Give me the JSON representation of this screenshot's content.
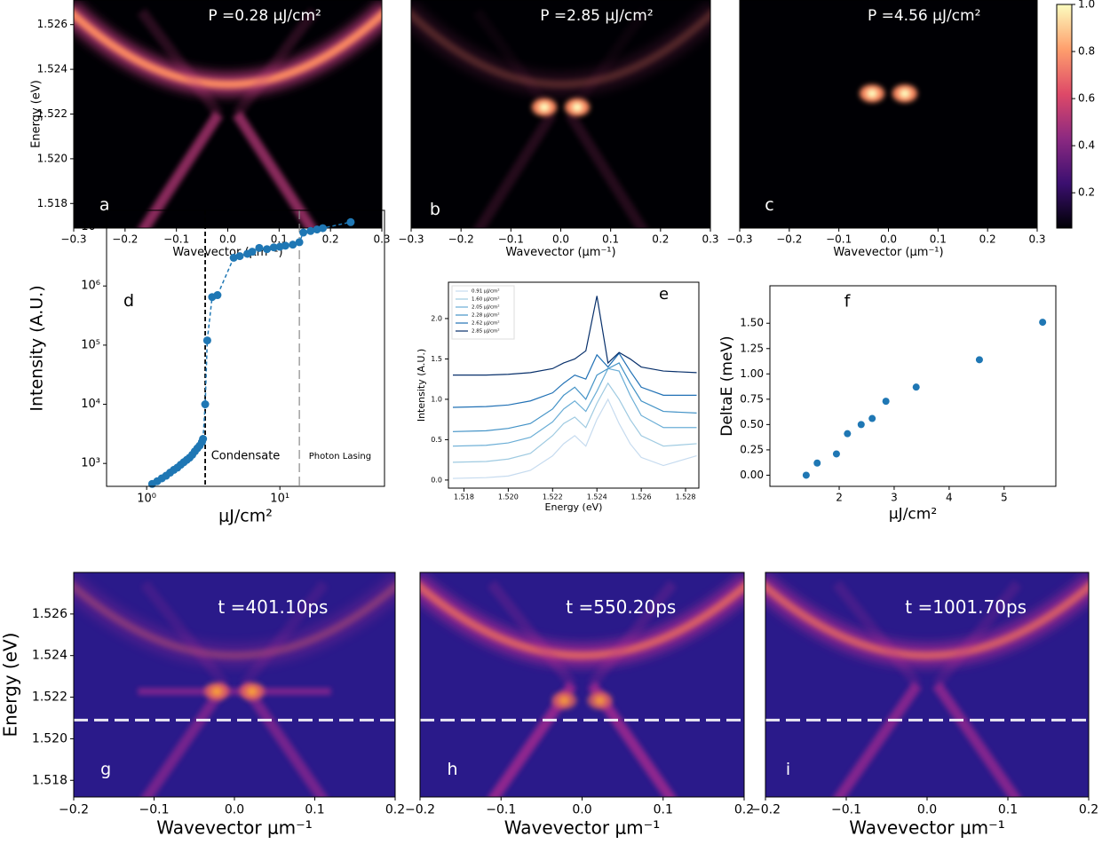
{
  "chart_data": [
    {
      "type": "heatmap",
      "colormap": "magma",
      "label": "P =0.28 μJ/cm²",
      "panel_label": "a",
      "xlabel": "Wavevector (μm⁻¹)",
      "ylabel": "Energy (eV)",
      "xlim": [
        -0.3,
        0.3
      ],
      "xticks": [
        {
          "value": -0.3,
          "label": "−0.3"
        },
        {
          "value": -0.2,
          "label": "−0.2"
        },
        {
          "value": -0.1,
          "label": "−0.1"
        },
        {
          "value": 0.0,
          "label": "0.0"
        },
        0.1,
        0.2,
        0.3
      ],
      "ylim": [
        1.5169,
        1.5271
      ],
      "yticks": [
        1.518,
        {
          "value": 1.52,
          "label": "1.520"
        },
        1.522,
        1.524,
        1.526
      ]
    },
    {
      "type": "heatmap",
      "colormap": "magma",
      "label": "P =2.85 μJ/cm²",
      "panel_label": "b",
      "xlabel": "Wavevector (μm⁻¹)",
      "xlim": [
        -0.3,
        0.3
      ],
      "xticks": [
        {
          "value": -0.3,
          "label": "−0.3"
        },
        {
          "value": -0.2,
          "label": "−0.2"
        },
        {
          "value": -0.1,
          "label": "−0.1"
        },
        {
          "value": 0.0,
          "label": "0.0"
        },
        0.1,
        0.2,
        0.3
      ],
      "ylim": [
        1.5169,
        1.5271
      ]
    },
    {
      "type": "heatmap",
      "colormap": "magma",
      "label": "P =4.56 μJ/cm²",
      "panel_label": "c",
      "xlabel": "Wavevector (μm⁻¹)",
      "xlim": [
        -0.3,
        0.3
      ],
      "xticks": [
        {
          "value": -0.3,
          "label": "−0.3"
        },
        {
          "value": -0.2,
          "label": "−0.2"
        },
        {
          "value": -0.1,
          "label": "−0.1"
        },
        {
          "value": 0.0,
          "label": "0.0"
        },
        0.1,
        0.2,
        0.3
      ],
      "ylim": [
        1.5169,
        1.5271
      ]
    },
    {
      "type": "colorbar",
      "colormap": "magma",
      "ylim": [
        0.05,
        1.0
      ],
      "yticks": [
        0.2,
        0.4,
        0.6,
        0.8,
        {
          "value": 1.0,
          "label": "1.0"
        }
      ]
    },
    {
      "type": "logscatter",
      "panel_label": "d",
      "xlabel": "μJ/cm²",
      "ylabel": "Intensity (A.U.)",
      "xscale": "log",
      "yscale": "log",
      "color": "#1f77b4",
      "linestyle": "dashed",
      "annotations": [
        "Condensate",
        "Photon Lasing"
      ],
      "vlines": [
        {
          "x": 2.75,
          "color": "#000000"
        },
        {
          "x": 14,
          "color": "#888888"
        }
      ],
      "x": [
        1.1,
        1.2,
        1.3,
        1.4,
        1.5,
        1.6,
        1.7,
        1.8,
        1.9,
        2.0,
        2.1,
        2.2,
        2.3,
        2.4,
        2.5,
        2.6,
        2.65,
        2.75,
        2.85,
        3.1,
        3.4,
        4.5,
        5.0,
        5.7,
        6.2,
        7.0,
        8.0,
        9.0,
        10.0,
        11.0,
        12.5,
        14.0,
        15.0,
        17.0,
        19.0,
        21.0,
        34.0
      ],
      "values": [
        450,
        500,
        560,
        620,
        700,
        780,
        850,
        950,
        1050,
        1150,
        1250,
        1400,
        1600,
        1800,
        2000,
        2300,
        2600,
        10000,
        120000,
        650000,
        700000,
        3000000,
        3200000,
        3500000,
        3800000,
        4400000,
        4200000,
        4500000,
        4600000,
        4800000,
        5000000,
        5500000,
        8000000,
        8500000,
        9000000,
        9500000,
        12000000
      ],
      "xlim": [
        0.5,
        61
      ],
      "xticks": [
        {
          "value": 1,
          "label": "10⁰"
        },
        {
          "value": 10,
          "label": "10¹"
        }
      ],
      "ylim": [
        410,
        19000000
      ],
      "yticks": [
        {
          "value": 1000,
          "label": "10³"
        },
        {
          "value": 10000,
          "label": "10⁴"
        },
        {
          "value": 100000,
          "label": "10⁵"
        },
        {
          "value": 1000000,
          "label": "10⁶"
        },
        {
          "value": 10000000,
          "label": "10⁷"
        }
      ]
    },
    {
      "type": "line",
      "panel_label": "e",
      "xlabel": "Energy (eV)",
      "ylabel": "Intensity (A.U.)",
      "legend": "upper left",
      "x": [
        1.5175,
        1.519,
        1.52,
        1.521,
        1.522,
        1.5225,
        1.523,
        1.5235,
        1.524,
        1.5245,
        1.525,
        1.5255,
        1.526,
        1.527,
        1.5285
      ],
      "series": [
        {
          "name": "0.91 μJ/cm²",
          "color": "#c6dbef",
          "values": [
            0.02,
            0.03,
            0.05,
            0.12,
            0.3,
            0.45,
            0.55,
            0.42,
            0.75,
            1.0,
            0.7,
            0.45,
            0.28,
            0.18,
            0.3
          ]
        },
        {
          "name": "1.60 μJ/cm²",
          "color": "#9ecae1",
          "values": [
            0.22,
            0.23,
            0.26,
            0.33,
            0.55,
            0.7,
            0.78,
            0.65,
            0.95,
            1.2,
            1.0,
            0.75,
            0.55,
            0.42,
            0.45
          ]
        },
        {
          "name": "2.05 μJ/cm²",
          "color": "#6baed6",
          "values": [
            0.42,
            0.43,
            0.46,
            0.53,
            0.72,
            0.88,
            0.98,
            0.85,
            1.1,
            1.38,
            1.35,
            1.05,
            0.8,
            0.65,
            0.65
          ]
        },
        {
          "name": "2.28 μJ/cm²",
          "color": "#4292c6",
          "values": [
            0.6,
            0.61,
            0.64,
            0.7,
            0.88,
            1.05,
            1.15,
            1.0,
            1.3,
            1.38,
            1.45,
            1.2,
            0.98,
            0.85,
            0.83
          ]
        },
        {
          "name": "2.62 μJ/cm²",
          "color": "#2171b5",
          "values": [
            0.9,
            0.91,
            0.93,
            0.98,
            1.08,
            1.2,
            1.3,
            1.25,
            1.55,
            1.4,
            1.57,
            1.35,
            1.15,
            1.05,
            1.05
          ]
        },
        {
          "name": "2.85 μJ/cm²",
          "color": "#08306b",
          "values": [
            1.3,
            1.3,
            1.31,
            1.33,
            1.38,
            1.45,
            1.5,
            1.6,
            2.28,
            1.45,
            1.58,
            1.5,
            1.4,
            1.35,
            1.33
          ]
        }
      ],
      "xlim": [
        1.5173,
        1.5286
      ],
      "xticks": [
        1.518,
        {
          "value": 1.52,
          "label": "1.520"
        },
        1.522,
        1.524,
        1.526,
        1.528
      ],
      "ylim": [
        -0.1,
        2.45
      ],
      "yticks": [
        {
          "value": 0,
          "label": "0.0"
        },
        0.5,
        {
          "value": 1,
          "label": "1.0"
        },
        1.5,
        {
          "value": 2,
          "label": "2.0"
        }
      ]
    },
    {
      "type": "scatter",
      "panel_label": "f",
      "xlabel": "μJ/cm²",
      "ylabel": "DeltaE (meV)",
      "color": "#1f77b4",
      "x": [
        1.4,
        1.6,
        1.95,
        2.15,
        2.4,
        2.6,
        2.85,
        3.4,
        4.55,
        5.7
      ],
      "values": [
        0,
        0.12,
        0.21,
        0.41,
        0.5,
        0.56,
        0.73,
        0.87,
        1.14,
        1.51
      ],
      "xlim": [
        0.74,
        5.94
      ],
      "xticks": [
        2,
        3,
        4,
        5
      ],
      "ylim": [
        -0.11,
        1.87
      ],
      "yticks": [
        {
          "value": 0,
          "label": "0.00"
        },
        0.25,
        {
          "value": 0.5,
          "label": "0.50"
        },
        0.75,
        {
          "value": 1,
          "label": "1.00"
        },
        1.25,
        {
          "value": 1.5,
          "label": "1.50"
        }
      ]
    },
    {
      "type": "heatmap",
      "colormap": "plasma",
      "label": "t =401.10ps",
      "panel_label": "g",
      "xlabel": "Wavevector μm⁻¹",
      "ylabel": "Energy (eV)",
      "hline": 1.5209,
      "hline_color": "#ffffff",
      "xlim": [
        -0.2,
        0.2
      ],
      "xticks": [
        {
          "value": -0.2,
          "label": "−0.2"
        },
        {
          "value": -0.1,
          "label": "−0.1"
        },
        {
          "value": 0.0,
          "label": "0.0"
        },
        0.1,
        0.2
      ],
      "ylim": [
        1.5172,
        1.528
      ],
      "yticks": [
        1.518,
        {
          "value": 1.52,
          "label": "1.520"
        },
        1.522,
        1.524,
        1.526
      ]
    },
    {
      "type": "heatmap",
      "colormap": "plasma",
      "label": "t =550.20ps",
      "panel_label": "h",
      "xlabel": "Wavevector μm⁻¹",
      "hline": 1.5209,
      "hline_color": "#ffffff",
      "xlim": [
        -0.2,
        0.2
      ],
      "xticks": [
        {
          "value": -0.2,
          "label": "−0.2"
        },
        {
          "value": -0.1,
          "label": "−0.1"
        },
        {
          "value": 0.0,
          "label": "0.0"
        },
        0.1,
        0.2
      ],
      "ylim": [
        1.5172,
        1.528
      ]
    },
    {
      "type": "heatmap",
      "colormap": "plasma",
      "label": "t =1001.70ps",
      "panel_label": "i",
      "xlabel": "Wavevector μm⁻¹",
      "hline": 1.5209,
      "hline_color": "#ffffff",
      "xlim": [
        -0.2,
        0.2
      ],
      "xticks": [
        {
          "value": -0.2,
          "label": "−0.2"
        },
        {
          "value": -0.1,
          "label": "−0.1"
        },
        {
          "value": 0.0,
          "label": "0.0"
        },
        0.1,
        0.2
      ],
      "ylim": [
        1.5172,
        1.528
      ]
    }
  ]
}
